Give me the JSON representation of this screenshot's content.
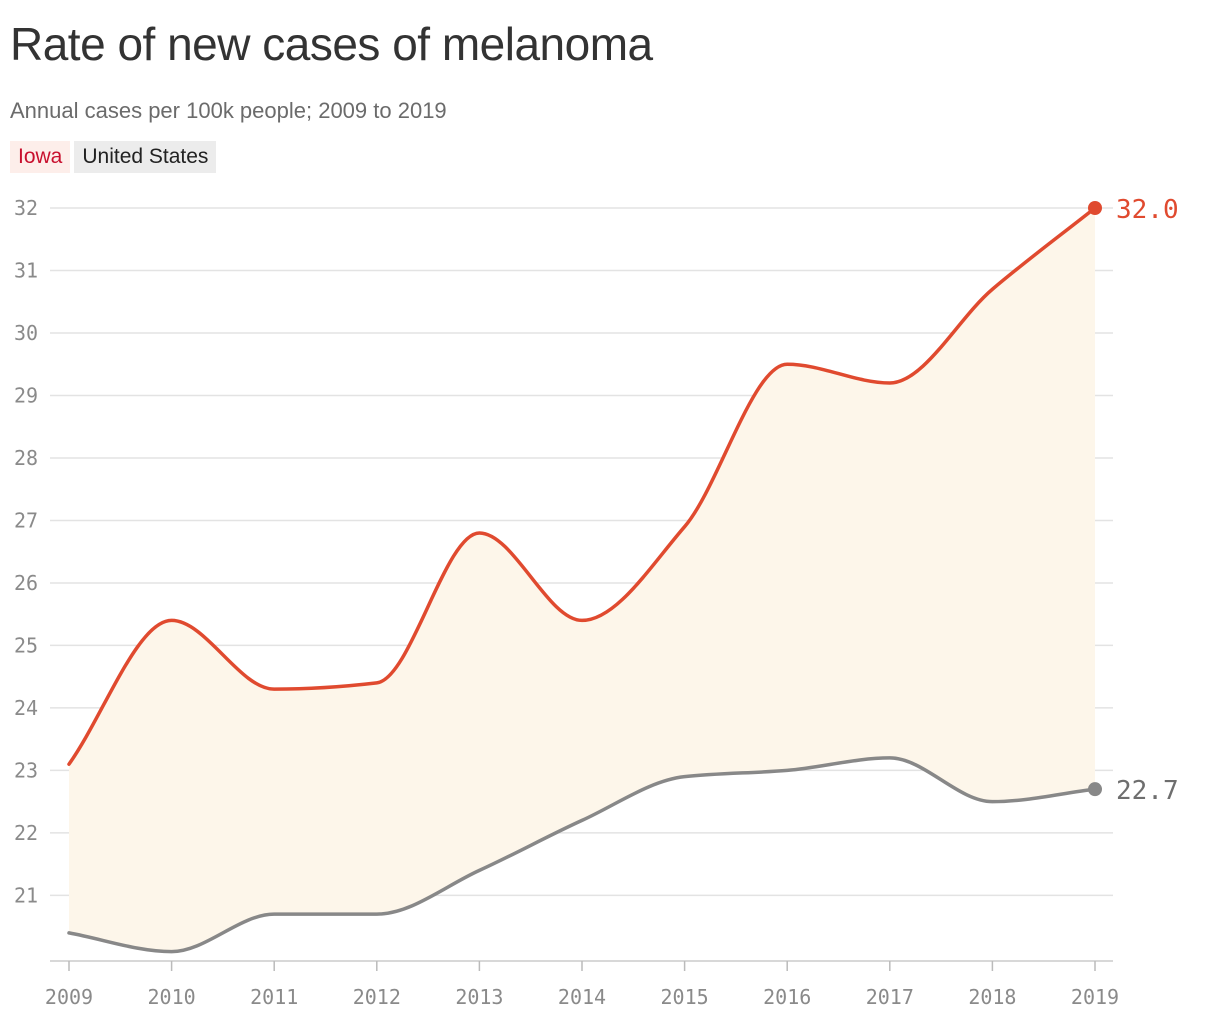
{
  "title": "Rate of new cases of melanoma",
  "subtitle": "Annual cases per 100k people; 2009 to 2019",
  "colors": {
    "iowa": "#e04a2f",
    "us": "#888888",
    "fill": "#fdf6ea",
    "legend_iowa_text": "#c8102e",
    "legend_iowa_bg": "#fdeeea",
    "legend_us_bg": "#ececec",
    "grid": "#e3e3e3"
  },
  "chart_data": {
    "type": "line",
    "x": [
      2009,
      2010,
      2011,
      2012,
      2013,
      2014,
      2015,
      2016,
      2017,
      2018,
      2019
    ],
    "series": [
      {
        "name": "Iowa",
        "values": [
          23.1,
          25.4,
          24.3,
          24.4,
          26.8,
          25.4,
          26.9,
          29.5,
          29.2,
          30.7,
          32.0
        ]
      },
      {
        "name": "United States",
        "values": [
          20.4,
          20.1,
          20.7,
          20.7,
          21.4,
          22.2,
          22.9,
          23.0,
          23.2,
          22.5,
          22.7
        ]
      }
    ],
    "end_labels": [
      "32.0",
      "22.7"
    ],
    "y_ticks": [
      21,
      22,
      23,
      24,
      25,
      26,
      27,
      28,
      29,
      30,
      31,
      32
    ],
    "ylim": [
      19.95,
      32
    ],
    "xlim": [
      2009,
      2019
    ],
    "grid": true,
    "legend": "top-left",
    "shaded_between_series": true
  }
}
